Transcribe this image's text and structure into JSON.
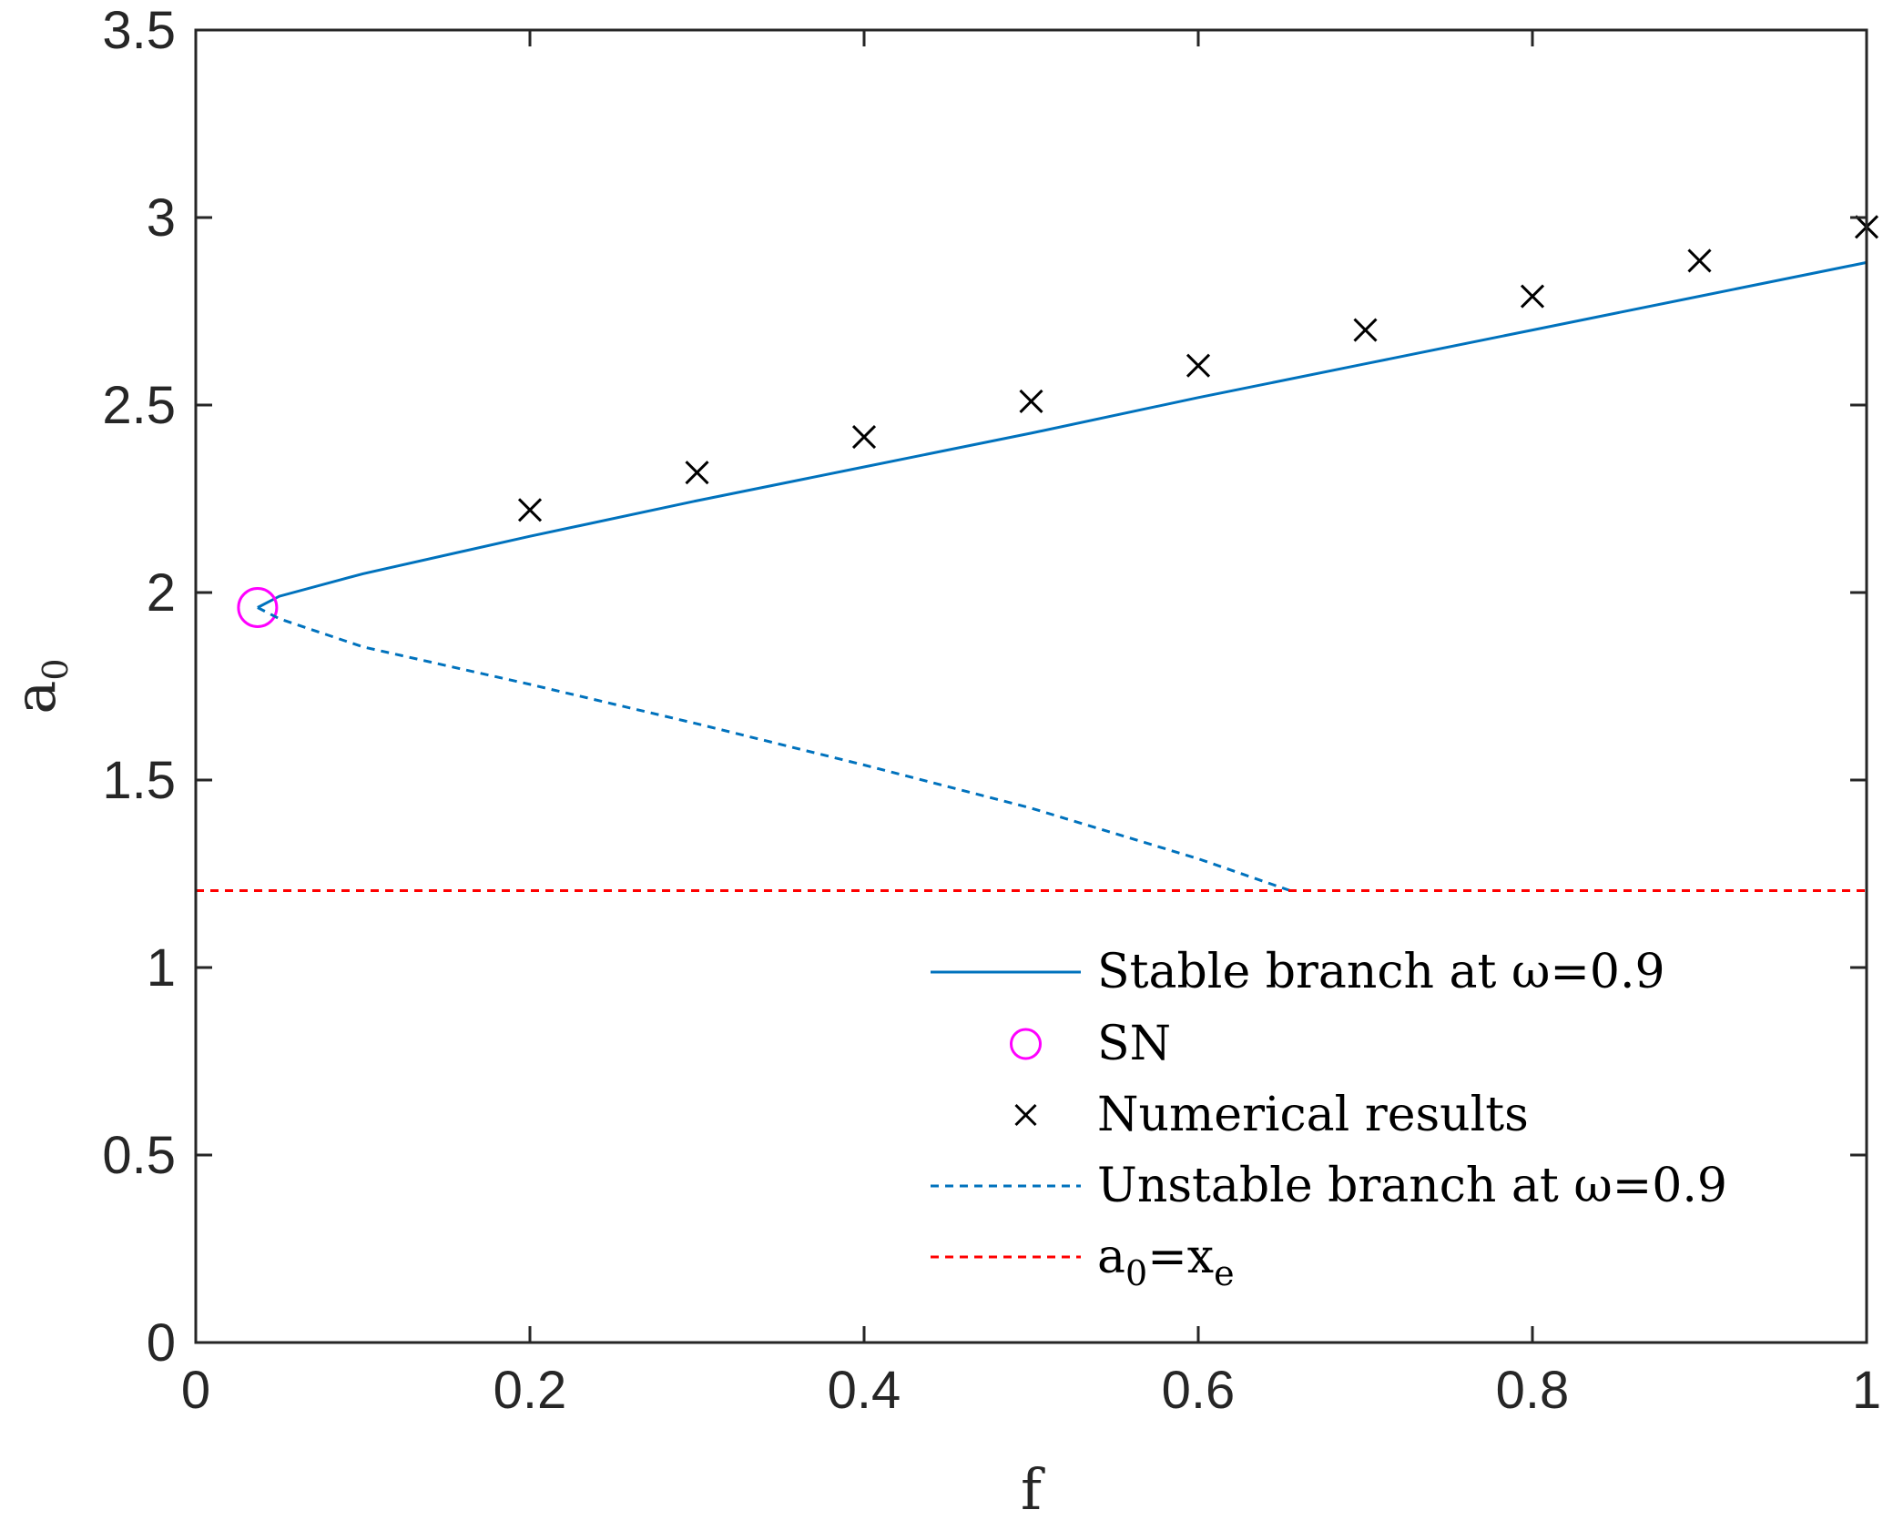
{
  "chart_data": {
    "type": "line",
    "xlabel": "f",
    "ylabel": {
      "main": "a",
      "sub": "0"
    },
    "xlim": [
      0,
      1
    ],
    "ylim": [
      0,
      3.5
    ],
    "x_ticks": [
      0,
      0.2,
      0.4,
      0.6,
      0.8,
      1
    ],
    "x_tick_labels": [
      "0",
      "0.2",
      "0.4",
      "0.6",
      "0.8",
      "1"
    ],
    "y_ticks": [
      0,
      0.5,
      1,
      1.5,
      2,
      2.5,
      3,
      3.5
    ],
    "y_tick_labels": [
      "0",
      "0.5",
      "1",
      "1.5",
      "2",
      "2.5",
      "3",
      "3.5"
    ],
    "grid": false,
    "legend_position": "bottom-right",
    "series": [
      {
        "key": "stable",
        "name": "Stable branch at ω=0.9",
        "style": "solid",
        "color": "#0072BD",
        "x": [
          0.037,
          0.05,
          0.1,
          0.2,
          0.3,
          0.4,
          0.5,
          0.6,
          0.7,
          0.8,
          0.9,
          1.0
        ],
        "y": [
          1.96,
          1.99,
          2.05,
          2.15,
          2.245,
          2.335,
          2.425,
          2.52,
          2.61,
          2.7,
          2.79,
          2.88
        ]
      },
      {
        "key": "sn",
        "name": "SN",
        "style": "circle-marker",
        "color": "#FF00FF",
        "x": [
          0.037
        ],
        "y": [
          1.96
        ]
      },
      {
        "key": "numerical",
        "name": "Numerical results",
        "style": "x-marker",
        "color": "#000000",
        "x": [
          0.2,
          0.3,
          0.4,
          0.5,
          0.6,
          0.7,
          0.8,
          0.9,
          1.0
        ],
        "y": [
          2.22,
          2.32,
          2.415,
          2.51,
          2.605,
          2.7,
          2.79,
          2.885,
          2.975
        ]
      },
      {
        "key": "unstable",
        "name": "Unstable branch at ω=0.9",
        "style": "dashed",
        "color": "#0072BD",
        "x": [
          0.037,
          0.05,
          0.1,
          0.2,
          0.3,
          0.4,
          0.5,
          0.6,
          0.655
        ],
        "y": [
          1.96,
          1.93,
          1.855,
          1.755,
          1.65,
          1.54,
          1.425,
          1.29,
          1.205
        ]
      },
      {
        "key": "threshold",
        "name": {
          "a": "a",
          "sub1": "0",
          "eq": "=x",
          "sub2": "e"
        },
        "style": "dashed",
        "color": "#FF0000",
        "x": [
          0,
          1
        ],
        "y": [
          1.205,
          1.205
        ]
      }
    ]
  }
}
